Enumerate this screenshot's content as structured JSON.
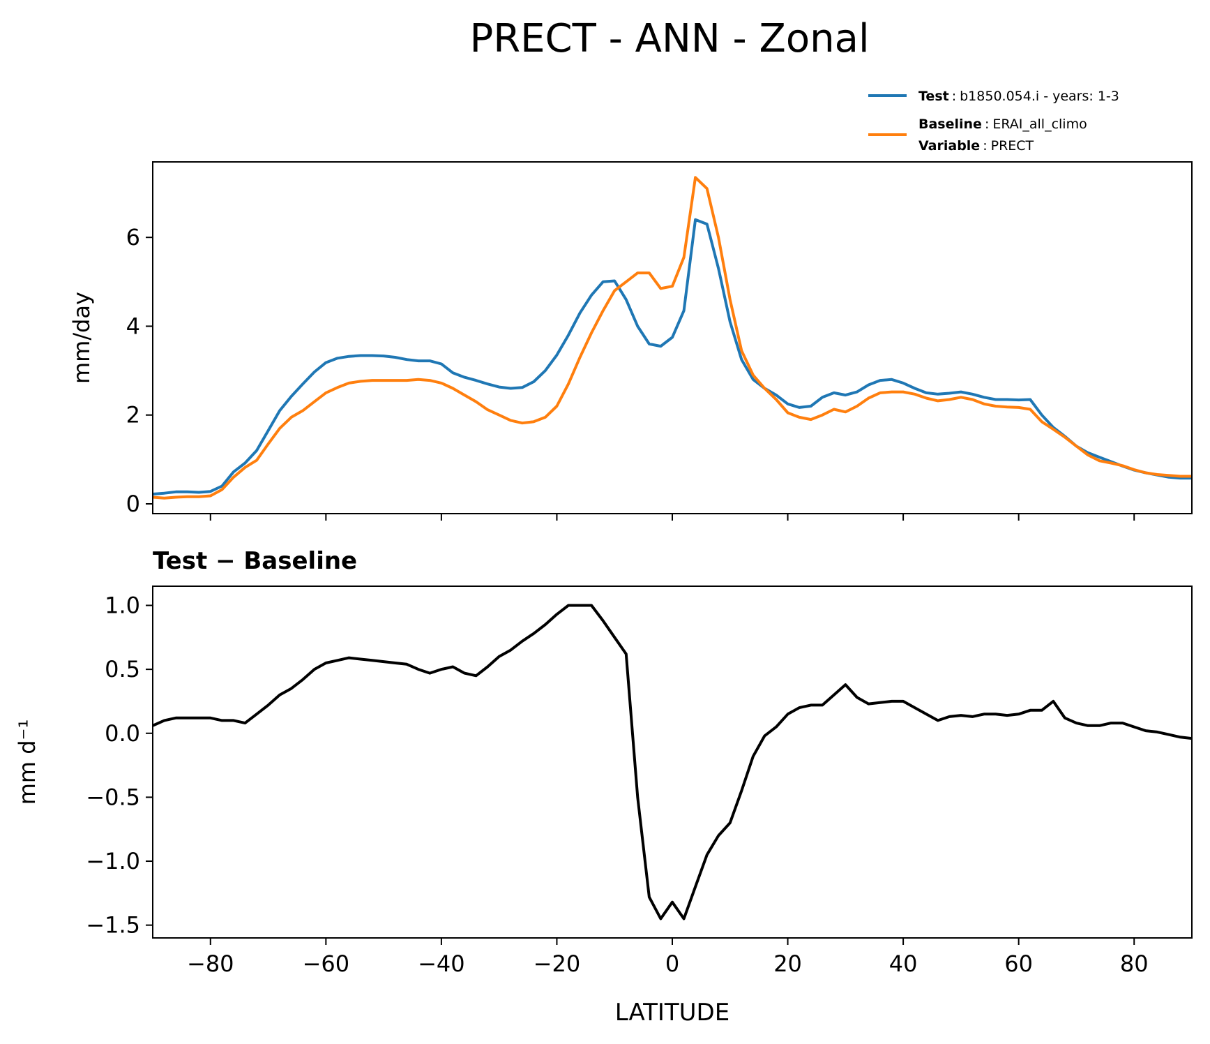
{
  "title": "PRECT - ANN - Zonal",
  "colors": {
    "test": "#1f77b4",
    "baseline": "#ff7f0e",
    "diff": "#000000",
    "axis": "#000000",
    "text": "#000000"
  },
  "legend": {
    "test_key": "Test",
    "test_value": "b1850.054.i - years: 1-3",
    "baseline_key": "Baseline",
    "baseline_value": "ERAI_all_climo",
    "variable_key": "Variable",
    "variable_value": "PRECT",
    "sep": ":"
  },
  "chart_data": [
    {
      "type": "line",
      "title": "",
      "xlabel": "",
      "ylabel": "mm/day",
      "xlim": [
        -90,
        90
      ],
      "ylim": [
        -0.22,
        7.7
      ],
      "xticks": [
        -80,
        -60,
        -40,
        -20,
        0,
        20,
        40,
        60,
        80
      ],
      "yticks": [
        0,
        2,
        4,
        6
      ],
      "ytick_labels": [
        "0",
        "2",
        "4",
        "6"
      ],
      "show_xtick_labels": false,
      "x": [
        -90,
        -88,
        -86,
        -84,
        -82,
        -80,
        -78,
        -76,
        -74,
        -72,
        -70,
        -68,
        -66,
        -64,
        -62,
        -60,
        -58,
        -56,
        -54,
        -52,
        -50,
        -48,
        -46,
        -44,
        -42,
        -40,
        -38,
        -36,
        -34,
        -32,
        -30,
        -28,
        -26,
        -24,
        -22,
        -20,
        -18,
        -16,
        -14,
        -12,
        -10,
        -8,
        -6,
        -4,
        -2,
        0,
        2,
        4,
        6,
        8,
        10,
        12,
        14,
        16,
        18,
        20,
        22,
        24,
        26,
        28,
        30,
        32,
        34,
        36,
        38,
        40,
        42,
        44,
        46,
        48,
        50,
        52,
        54,
        56,
        58,
        60,
        62,
        64,
        66,
        68,
        70,
        72,
        74,
        76,
        78,
        80,
        82,
        84,
        86,
        88,
        90
      ],
      "series": [
        {
          "name": "Test",
          "color": "#1f77b4",
          "values": [
            0.22,
            0.24,
            0.27,
            0.27,
            0.26,
            0.28,
            0.4,
            0.72,
            0.92,
            1.2,
            1.65,
            2.1,
            2.42,
            2.7,
            2.97,
            3.18,
            3.28,
            3.32,
            3.34,
            3.34,
            3.33,
            3.3,
            3.25,
            3.22,
            3.22,
            3.15,
            2.95,
            2.85,
            2.78,
            2.7,
            2.63,
            2.6,
            2.62,
            2.75,
            3.0,
            3.35,
            3.8,
            4.3,
            4.7,
            5.0,
            5.02,
            4.6,
            4.0,
            3.6,
            3.55,
            3.75,
            4.35,
            6.4,
            6.3,
            5.3,
            4.1,
            3.25,
            2.8,
            2.6,
            2.45,
            2.25,
            2.17,
            2.2,
            2.4,
            2.5,
            2.45,
            2.52,
            2.68,
            2.78,
            2.8,
            2.72,
            2.6,
            2.5,
            2.47,
            2.49,
            2.52,
            2.47,
            2.4,
            2.35,
            2.35,
            2.34,
            2.35,
            2.0,
            1.72,
            1.52,
            1.3,
            1.15,
            1.05,
            0.95,
            0.85,
            0.76,
            0.7,
            0.65,
            0.6,
            0.58,
            0.58
          ]
        },
        {
          "name": "Baseline",
          "color": "#ff7f0e",
          "values": [
            0.15,
            0.13,
            0.15,
            0.16,
            0.16,
            0.18,
            0.32,
            0.6,
            0.82,
            0.98,
            1.35,
            1.7,
            1.95,
            2.1,
            2.3,
            2.5,
            2.62,
            2.72,
            2.76,
            2.78,
            2.78,
            2.78,
            2.78,
            2.8,
            2.78,
            2.72,
            2.6,
            2.45,
            2.3,
            2.12,
            2.0,
            1.88,
            1.82,
            1.85,
            1.95,
            2.2,
            2.7,
            3.3,
            3.85,
            4.35,
            4.8,
            5.0,
            5.2,
            5.2,
            4.85,
            4.9,
            5.55,
            7.35,
            7.1,
            6.0,
            4.6,
            3.45,
            2.9,
            2.6,
            2.35,
            2.05,
            1.95,
            1.9,
            2.0,
            2.13,
            2.07,
            2.2,
            2.38,
            2.5,
            2.52,
            2.52,
            2.47,
            2.38,
            2.32,
            2.35,
            2.4,
            2.35,
            2.25,
            2.2,
            2.18,
            2.17,
            2.13,
            1.85,
            1.68,
            1.5,
            1.3,
            1.1,
            0.97,
            0.92,
            0.86,
            0.77,
            0.7,
            0.66,
            0.64,
            0.62,
            0.62
          ]
        }
      ]
    },
    {
      "type": "line",
      "title": "Test − Baseline",
      "xlabel": "LATITUDE",
      "ylabel": "mm d⁻¹",
      "xlim": [
        -90,
        90
      ],
      "ylim": [
        -1.6,
        1.15
      ],
      "xticks": [
        -80,
        -60,
        -40,
        -20,
        0,
        20,
        40,
        60,
        80
      ],
      "xtick_labels": [
        "−80",
        "−60",
        "−40",
        "−20",
        "0",
        "20",
        "40",
        "60",
        "80"
      ],
      "yticks": [
        1.0,
        0.5,
        0.0,
        -0.5,
        -1.0,
        -1.5
      ],
      "ytick_labels": [
        "1.0",
        "0.5",
        "0.0",
        "−0.5",
        "−1.0",
        "−1.5"
      ],
      "show_xtick_labels": true,
      "x": [
        -90,
        -88,
        -86,
        -84,
        -82,
        -80,
        -78,
        -76,
        -74,
        -72,
        -70,
        -68,
        -66,
        -64,
        -62,
        -60,
        -58,
        -56,
        -54,
        -52,
        -50,
        -48,
        -46,
        -44,
        -42,
        -40,
        -38,
        -36,
        -34,
        -32,
        -30,
        -28,
        -26,
        -24,
        -22,
        -20,
        -18,
        -16,
        -14,
        -12,
        -10,
        -8,
        -6,
        -4,
        -2,
        0,
        2,
        4,
        6,
        8,
        10,
        12,
        14,
        16,
        18,
        20,
        22,
        24,
        26,
        28,
        30,
        32,
        34,
        36,
        38,
        40,
        42,
        44,
        46,
        48,
        50,
        52,
        54,
        56,
        58,
        60,
        62,
        64,
        66,
        68,
        70,
        72,
        74,
        76,
        78,
        80,
        82,
        84,
        86,
        88,
        90
      ],
      "series": [
        {
          "name": "Test − Baseline",
          "color": "#000000",
          "values": [
            0.06,
            0.1,
            0.12,
            0.12,
            0.12,
            0.12,
            0.1,
            0.1,
            0.08,
            0.15,
            0.22,
            0.3,
            0.35,
            0.42,
            0.5,
            0.55,
            0.57,
            0.59,
            0.58,
            0.57,
            0.56,
            0.55,
            0.54,
            0.5,
            0.47,
            0.5,
            0.52,
            0.47,
            0.45,
            0.52,
            0.6,
            0.65,
            0.72,
            0.78,
            0.85,
            0.93,
            1.0,
            1.0,
            1.0,
            0.88,
            0.75,
            0.62,
            -0.5,
            -1.28,
            -1.45,
            -1.32,
            -1.45,
            -1.2,
            -0.95,
            -0.8,
            -0.7,
            -0.45,
            -0.18,
            -0.02,
            0.05,
            0.15,
            0.2,
            0.22,
            0.22,
            0.3,
            0.38,
            0.28,
            0.23,
            0.24,
            0.25,
            0.25,
            0.2,
            0.15,
            0.1,
            0.13,
            0.14,
            0.13,
            0.15,
            0.15,
            0.14,
            0.15,
            0.18,
            0.18,
            0.25,
            0.12,
            0.08,
            0.06,
            0.06,
            0.08,
            0.08,
            0.05,
            0.02,
            0.01,
            -0.01,
            -0.03,
            -0.04
          ]
        }
      ]
    }
  ]
}
